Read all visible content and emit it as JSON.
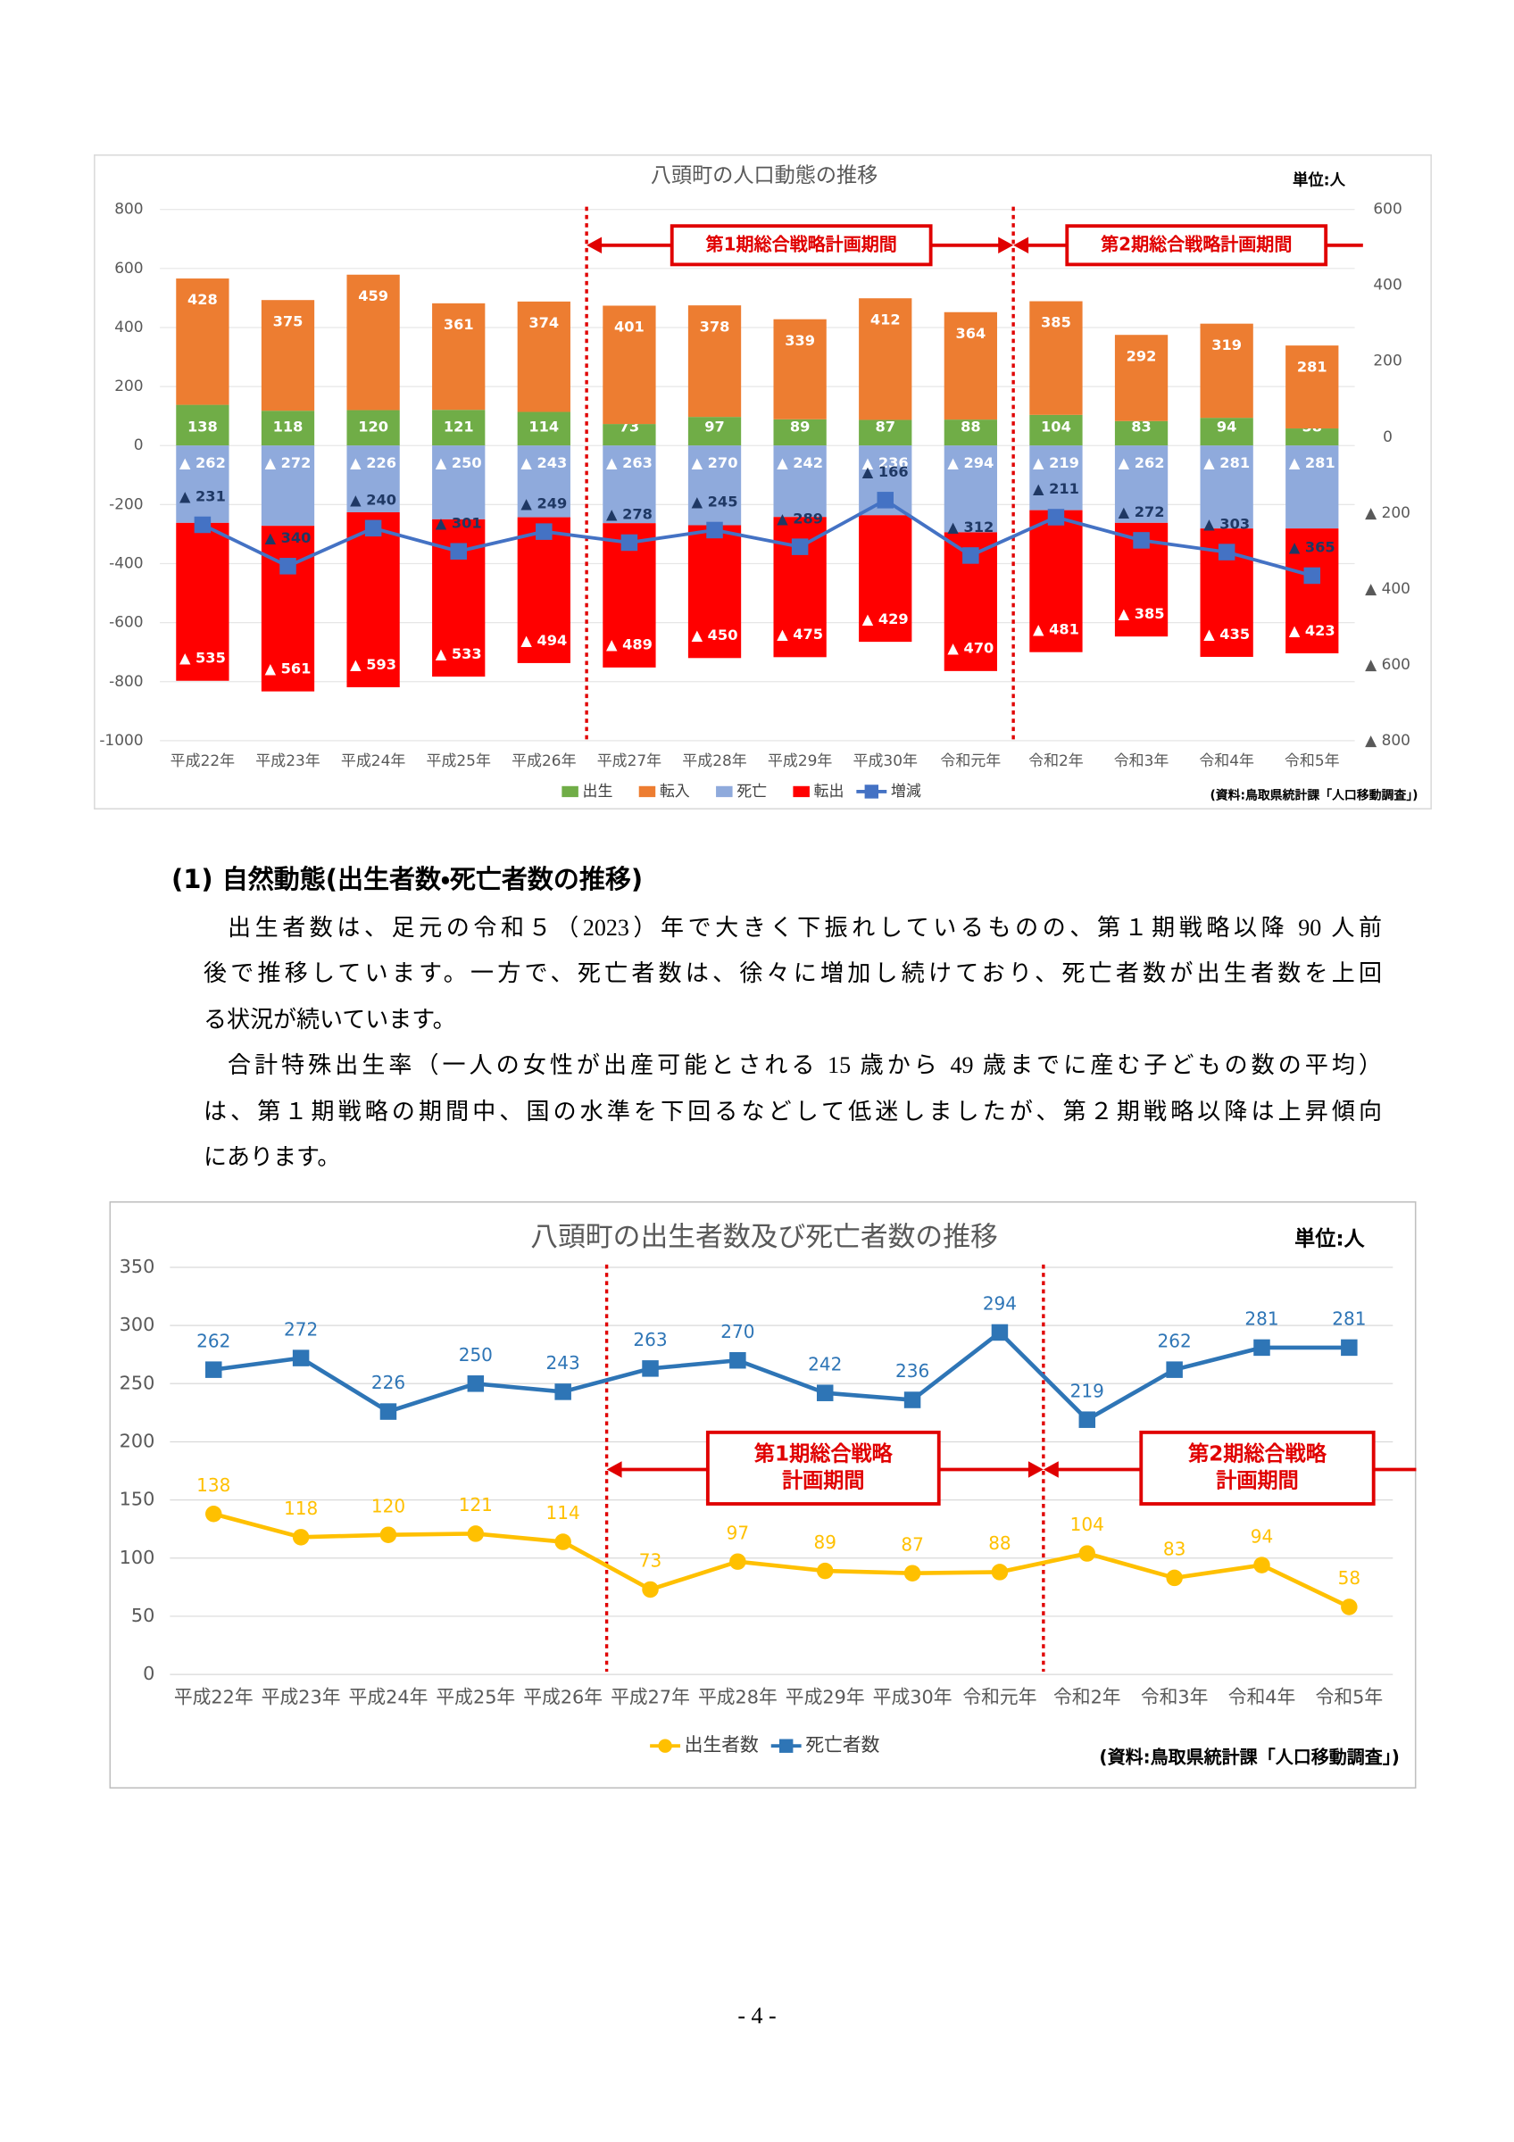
{
  "chart_data": [
    {
      "type": "bar",
      "title": "八頭町の人口動態の推移",
      "unit": "単位:人",
      "periods": [
        "第1期総合戦略計画期間",
        "第2期総合戦略計画期間"
      ],
      "source": "(資料:鳥取県統計課「人口移動調査」)",
      "categories": [
        "平成22年",
        "平成23年",
        "平成24年",
        "平成25年",
        "平成26年",
        "平成27年",
        "平成28年",
        "平成29年",
        "平成30年",
        "令和元年",
        "令和2年",
        "令和3年",
        "令和4年",
        "令和5年"
      ],
      "series": [
        {
          "name": "出生",
          "color": "#70ad47",
          "values": [
            138,
            118,
            120,
            121,
            114,
            73,
            97,
            89,
            87,
            88,
            104,
            83,
            94,
            58
          ]
        },
        {
          "name": "転入",
          "color": "#ed7d31",
          "values": [
            428,
            375,
            459,
            361,
            374,
            401,
            378,
            339,
            412,
            364,
            385,
            292,
            319,
            281
          ]
        },
        {
          "name": "死亡",
          "color": "#8faadc",
          "values": [
            -262,
            -272,
            -226,
            -250,
            -243,
            -263,
            -270,
            -242,
            -236,
            -294,
            -219,
            -262,
            -281,
            -281
          ],
          "value_labels": [
            "▲ 262",
            "▲ 272",
            "▲ 226",
            "▲ 250",
            "▲ 243",
            "▲ 263",
            "▲ 270",
            "▲ 242",
            "▲ 236",
            "▲ 294",
            "▲ 219",
            "▲ 262",
            "▲ 281",
            "▲ 281"
          ]
        },
        {
          "name": "転出",
          "color": "#ff0000",
          "values": [
            -535,
            -561,
            -593,
            -533,
            -494,
            -489,
            -450,
            -475,
            -429,
            -470,
            -481,
            -385,
            -435,
            -423
          ],
          "value_labels": [
            "▲ 535",
            "▲ 561",
            "▲ 593",
            "▲ 533",
            "▲ 494",
            "▲ 489",
            "▲ 450",
            "▲ 475",
            "▲ 429",
            "▲ 470",
            "▲ 481",
            "▲ 385",
            "▲ 435",
            "▲ 423"
          ]
        },
        {
          "name": "増減",
          "type": "line",
          "axis": "y2",
          "color": "#4472c4",
          "marker": "square",
          "values": [
            -231,
            -340,
            -240,
            -301,
            -249,
            -278,
            -245,
            -289,
            -166,
            -312,
            -211,
            -272,
            -303,
            -365
          ],
          "value_labels": [
            "▲ 231",
            "▲ 340",
            "▲ 240",
            "▲ 301",
            "▲ 249",
            "▲ 278",
            "▲ 245",
            "▲ 289",
            "▲ 166",
            "▲ 312",
            "▲ 211",
            "▲ 272",
            "▲ 303",
            "▲ 365"
          ]
        }
      ],
      "ylim": [
        -1000,
        800
      ],
      "yticks": [
        800,
        600,
        400,
        200,
        0,
        -200,
        -400,
        -600,
        -800,
        -1000
      ],
      "y2lim": [
        -800,
        600
      ],
      "y2ticks": [
        600,
        400,
        200,
        0,
        {
          "value": -200,
          "label": "▲ 200"
        },
        {
          "value": -400,
          "label": "▲ 400"
        },
        {
          "value": -600,
          "label": "▲ 600"
        },
        {
          "value": -800,
          "label": "▲ 800"
        }
      ],
      "grid": true
    },
    {
      "type": "line",
      "title": "八頭町の出生者数及び死亡者数の推移",
      "unit": "単位:人",
      "periods": [
        [
          "第1期総合戦略",
          "計画期間"
        ],
        [
          "第2期総合戦略",
          "計画期間"
        ]
      ],
      "source": "(資料:鳥取県統計課「人口移動調査」)",
      "categories": [
        "平成22年",
        "平成23年",
        "平成24年",
        "平成25年",
        "平成26年",
        "平成27年",
        "平成28年",
        "平成29年",
        "平成30年",
        "令和元年",
        "令和2年",
        "令和3年",
        "令和4年",
        "令和5年"
      ],
      "series": [
        {
          "name": "出生者数",
          "color": "#ffc000",
          "marker": "circle",
          "values": [
            138,
            118,
            120,
            121,
            114,
            73,
            97,
            89,
            87,
            88,
            104,
            83,
            94,
            58
          ]
        },
        {
          "name": "死亡者数",
          "color": "#2e75b6",
          "marker": "square",
          "values": [
            262,
            272,
            226,
            250,
            243,
            263,
            270,
            242,
            236,
            294,
            219,
            262,
            281,
            281
          ]
        }
      ],
      "ylim": [
        0,
        350
      ],
      "yticks": [
        0,
        50,
        100,
        150,
        200,
        250,
        300,
        350
      ],
      "grid": true
    }
  ],
  "section": {
    "heading": "(1) 自然動態(出生者数・死亡者数の推移)",
    "paragraphs": [
      [
        "出生者数は、足元の令和５（2023）年で大きく下振れしているものの、第１期戦略以降 90 人前",
        "後で推移しています。一方で、死亡者数は、徐々に増加し続けており、死亡者数が出生者数を上回",
        "る状況が続いています。"
      ],
      [
        "合計特殊出生率（一人の女性が出産可能とされる 15 歳から 49 歳までに産む子どもの数の平均）",
        "は、第１期戦略の期間中、国の水準を下回るなどして低迷しましたが、第２期戦略以降は上昇傾向",
        "にあります。"
      ]
    ]
  },
  "page_number": "- 4 -"
}
